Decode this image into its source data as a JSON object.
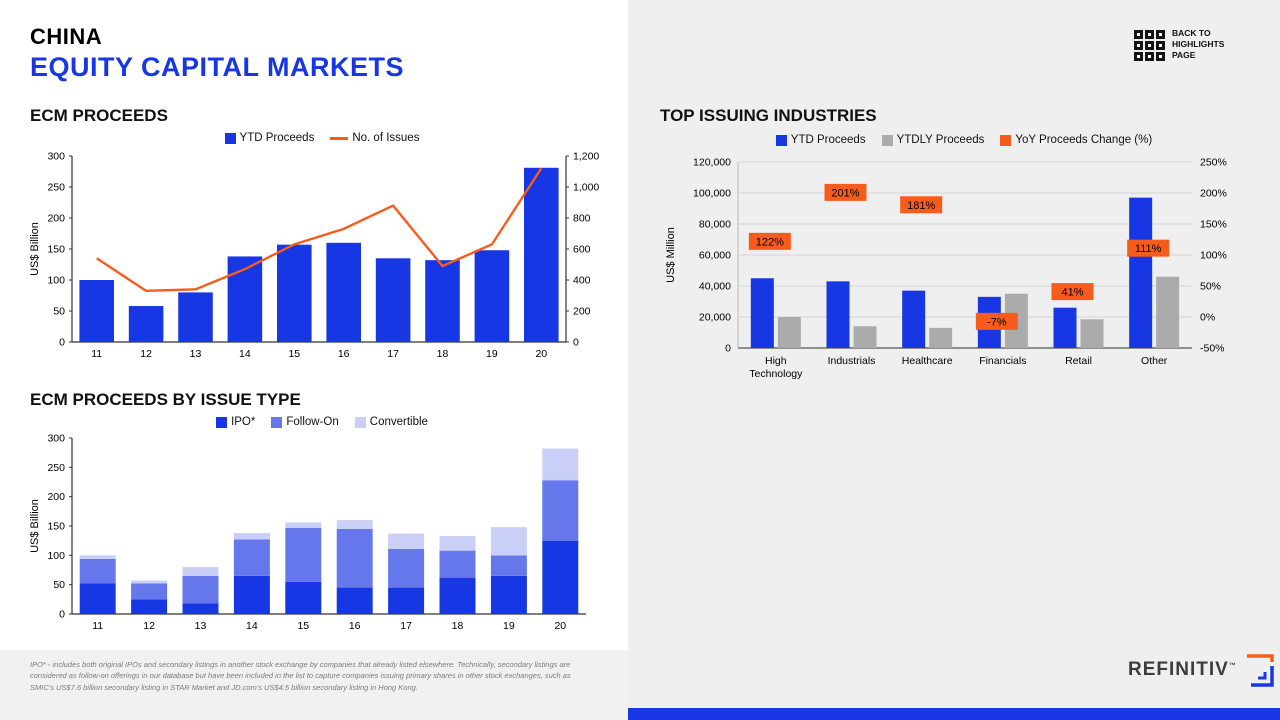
{
  "page": {
    "title_line1": "CHINA",
    "title_line2": "EQUITY CAPITAL MARKETS"
  },
  "back_link": {
    "line1": "BACK TO",
    "line2": "HIGHLIGHTS",
    "line3": "PAGE"
  },
  "sections": {
    "ecm_proceeds": "ECM PROCEEDS",
    "issue_type": "ECM PROCEEDS BY ISSUE TYPE",
    "industries": "TOP ISSUING INDUSTRIES"
  },
  "colors": {
    "blue": "#1737e4",
    "mid_blue": "#6677ec",
    "light_blue": "#c9cff7",
    "orange": "#f75c1c",
    "gray": "#ababab",
    "panel_bg": "#efefef"
  },
  "chart_data": [
    {
      "id": "ecm_proceeds",
      "type": "bar-line",
      "title": "ECM PROCEEDS",
      "categories": [
        "11",
        "12",
        "13",
        "14",
        "15",
        "16",
        "17",
        "18",
        "19",
        "20"
      ],
      "series": [
        {
          "name": "YTD Proceeds",
          "chart": "bar",
          "axis": "left",
          "color_key": "blue",
          "values": [
            100,
            58,
            80,
            138,
            157,
            160,
            135,
            132,
            148,
            281
          ]
        },
        {
          "name": "No. of Issues",
          "chart": "line",
          "axis": "right",
          "color_key": "orange",
          "values": [
            540,
            330,
            340,
            470,
            630,
            730,
            880,
            490,
            630,
            1120
          ]
        }
      ],
      "ylabel_left": "US$ Billion",
      "ylim_left": [
        0,
        300
      ],
      "ytick_left": 50,
      "ylim_right": [
        0,
        1200
      ],
      "ytick_right": 200,
      "grid": false,
      "legend_position": "top"
    },
    {
      "id": "ecm_proceeds_by_issue_type",
      "type": "stacked-bar",
      "title": "ECM PROCEEDS BY ISSUE TYPE",
      "categories": [
        "11",
        "12",
        "13",
        "14",
        "15",
        "16",
        "17",
        "18",
        "19",
        "20"
      ],
      "series": [
        {
          "name": "IPO*",
          "color_key": "blue",
          "values": [
            52,
            25,
            18,
            65,
            55,
            45,
            45,
            62,
            65,
            125
          ]
        },
        {
          "name": "Follow-On",
          "color_key": "mid_blue",
          "values": [
            42,
            27,
            47,
            62,
            92,
            100,
            66,
            46,
            35,
            103
          ]
        },
        {
          "name": "Convertible",
          "color_key": "light_blue",
          "values": [
            6,
            5,
            15,
            11,
            9,
            15,
            26,
            25,
            48,
            54
          ]
        }
      ],
      "ylabel_left": "US$ Billion",
      "ylim_left": [
        0,
        300
      ],
      "ytick_left": 50,
      "grid": false,
      "legend_position": "top"
    },
    {
      "id": "top_issuing_industries",
      "type": "grouped-bar",
      "title": "TOP ISSUING INDUSTRIES",
      "categories": [
        [
          "High",
          "Technology"
        ],
        [
          "Industrials"
        ],
        [
          "Healthcare"
        ],
        [
          "Financials"
        ],
        [
          "Retail"
        ],
        [
          "Other"
        ]
      ],
      "series": [
        {
          "name": "YTD Proceeds",
          "color_key": "blue",
          "values": [
            45000,
            43000,
            37000,
            33000,
            26000,
            97000
          ]
        },
        {
          "name": "YTDLY Proceeds",
          "color_key": "gray",
          "values": [
            20000,
            14000,
            13000,
            35000,
            18500,
            46000
          ]
        }
      ],
      "labels_series": {
        "name": "YoY Proceeds Change (%)",
        "color_key": "orange",
        "axis": "right",
        "values": [
          122,
          201,
          181,
          -7,
          41,
          111
        ]
      },
      "ylabel_left": "US$ Million",
      "ylim_left": [
        0,
        120000
      ],
      "ytick_left": 20000,
      "ylim_right": [
        -50,
        250
      ],
      "ytick_right": 50,
      "grid": true,
      "legend_position": "top"
    }
  ],
  "footnote": "IPO* - includes both original IPOs and secondary listings in another stock exchange by companies that already listed elsewhere. Technically, secondary listings are considered as follow-on offerings in our database but have been included in the list to capture companies issuing primary shares in other stock exchanges, such as SMIC's US$7.6 billion secondary listing in STAR Market and JD.com's US$4.5 billion secondary listing in Hong Kong.",
  "logo": {
    "brand": "REFINITIV",
    "tm": "™"
  }
}
